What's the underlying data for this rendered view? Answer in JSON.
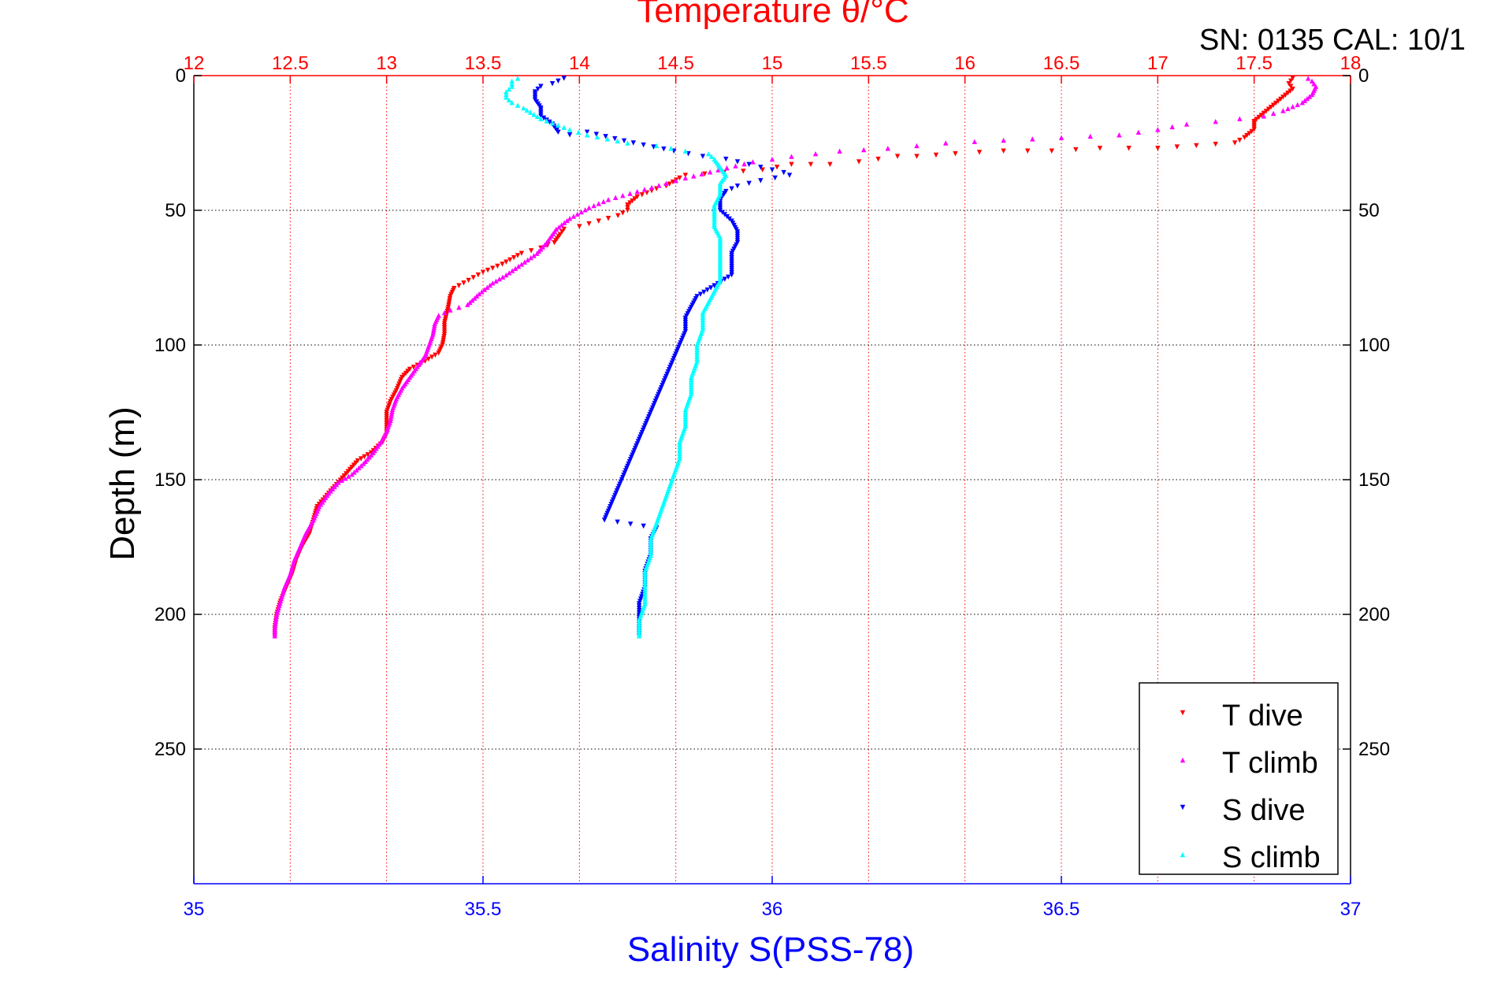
{
  "header": {
    "top_title": "Temperature θ/°C",
    "serial_label": "SN: 0135  CAL: 10/1"
  },
  "colors": {
    "temperature": "#ff0000",
    "salinity": "#0000ff",
    "t_dive": "#ff0000",
    "t_climb": "#ff00ff",
    "s_dive": "#0000ff",
    "s_climb": "#00ffff",
    "frame": "#000000",
    "grid_temp": "#ff0000",
    "grid_depth": "#000000"
  },
  "chart_data": {
    "type": "scatter",
    "title": "",
    "ylabel": "Depth (m)",
    "xlabel_bottom": "Salinity S(PSS-78)",
    "xlabel_top": "Temperature θ/°C",
    "y_reversed": true,
    "ylim": [
      0,
      300
    ],
    "xlim_bottom": [
      35,
      37
    ],
    "xlim_top": [
      12,
      18
    ],
    "y_ticks": [
      0,
      50,
      100,
      150,
      200,
      250
    ],
    "y_tick_labels": [
      "0",
      "50",
      "100",
      "150",
      "200",
      "250"
    ],
    "x_bottom_ticks": [
      35,
      35.5,
      36,
      36.5,
      37
    ],
    "x_bottom_tick_labels": [
      "35",
      "35.5",
      "36",
      "36.5",
      "37"
    ],
    "x_top_ticks": [
      12,
      12.5,
      13,
      13.5,
      14,
      14.5,
      15,
      15.5,
      16,
      16.5,
      17,
      17.5,
      18
    ],
    "x_top_tick_labels": [
      "12",
      "12.5",
      "13",
      "13.5",
      "14",
      "14.5",
      "15",
      "15.5",
      "16",
      "16.5",
      "17",
      "17.5",
      "18"
    ],
    "grid": "vertical dotted at temperature ticks, horizontal dotted at depth ticks",
    "legend": {
      "position": "bottom-right",
      "entries": [
        "T dive",
        "T climb",
        "S dive",
        "S climb"
      ]
    },
    "series": [
      {
        "name": "T dive",
        "axis": "temperature",
        "marker": "triangle-down",
        "color": "#ff0000",
        "points": [
          [
            17.7,
            1
          ],
          [
            17.68,
            3
          ],
          [
            17.7,
            5
          ],
          [
            17.65,
            8
          ],
          [
            17.6,
            11
          ],
          [
            17.55,
            14
          ],
          [
            17.5,
            17
          ],
          [
            17.5,
            20
          ],
          [
            17.45,
            23
          ],
          [
            17.4,
            25
          ],
          [
            17.2,
            26
          ],
          [
            17.0,
            27
          ],
          [
            16.85,
            27
          ],
          [
            16.7,
            27
          ],
          [
            16.45,
            28
          ],
          [
            16.2,
            28
          ],
          [
            15.95,
            29
          ],
          [
            15.75,
            30
          ],
          [
            15.65,
            30
          ],
          [
            15.55,
            31
          ],
          [
            15.45,
            32
          ],
          [
            15.3,
            33
          ],
          [
            15.1,
            33
          ],
          [
            14.95,
            35
          ],
          [
            14.75,
            36
          ],
          [
            14.55,
            37
          ],
          [
            14.52,
            38
          ],
          [
            14.45,
            41
          ],
          [
            14.4,
            42
          ],
          [
            14.3,
            45
          ],
          [
            14.25,
            48
          ],
          [
            14.25,
            50
          ],
          [
            14.2,
            52
          ],
          [
            14.1,
            54
          ],
          [
            14.0,
            56
          ],
          [
            13.92,
            57
          ],
          [
            13.9,
            59
          ],
          [
            13.87,
            62
          ],
          [
            13.8,
            64
          ],
          [
            13.7,
            66
          ],
          [
            13.6,
            70
          ],
          [
            13.5,
            73
          ],
          [
            13.45,
            75
          ],
          [
            13.4,
            77
          ],
          [
            13.35,
            79
          ],
          [
            13.33,
            82
          ],
          [
            13.32,
            86
          ],
          [
            13.31,
            89
          ],
          [
            13.3,
            92
          ],
          [
            13.3,
            96
          ],
          [
            13.29,
            100
          ],
          [
            13.27,
            103
          ],
          [
            13.2,
            106
          ],
          [
            13.12,
            109
          ],
          [
            13.08,
            112
          ],
          [
            13.05,
            117
          ],
          [
            13.02,
            121
          ],
          [
            13.0,
            125
          ],
          [
            13.0,
            129
          ],
          [
            13.0,
            133
          ],
          [
            12.98,
            136
          ],
          [
            12.92,
            140
          ],
          [
            12.85,
            143
          ],
          [
            12.8,
            147
          ],
          [
            12.75,
            151
          ],
          [
            12.7,
            155
          ],
          [
            12.64,
            160
          ],
          [
            12.62,
            165
          ],
          [
            12.6,
            170
          ],
          [
            12.56,
            175
          ],
          [
            12.53,
            180
          ],
          [
            12.51,
            185
          ],
          [
            12.48,
            190
          ],
          [
            12.45,
            195
          ],
          [
            12.43,
            200
          ],
          [
            12.42,
            205
          ],
          [
            12.42,
            208
          ]
        ]
      },
      {
        "name": "T climb",
        "axis": "temperature",
        "marker": "triangle-up",
        "color": "#ff00ff",
        "points": [
          [
            12.42,
            208
          ],
          [
            12.42,
            205
          ],
          [
            12.43,
            200
          ],
          [
            12.45,
            195
          ],
          [
            12.47,
            190
          ],
          [
            12.5,
            185
          ],
          [
            12.52,
            180
          ],
          [
            12.55,
            175
          ],
          [
            12.58,
            170
          ],
          [
            12.62,
            165
          ],
          [
            12.65,
            160
          ],
          [
            12.7,
            155
          ],
          [
            12.75,
            151
          ],
          [
            12.82,
            148
          ],
          [
            12.88,
            144
          ],
          [
            12.93,
            140
          ],
          [
            12.97,
            136
          ],
          [
            13.0,
            132
          ],
          [
            13.02,
            128
          ],
          [
            13.03,
            124
          ],
          [
            13.05,
            120
          ],
          [
            13.08,
            116
          ],
          [
            13.12,
            112
          ],
          [
            13.16,
            108
          ],
          [
            13.2,
            104
          ],
          [
            13.22,
            100
          ],
          [
            13.24,
            96
          ],
          [
            13.25,
            92
          ],
          [
            13.27,
            89
          ],
          [
            13.33,
            87
          ],
          [
            13.42,
            85
          ],
          [
            13.48,
            81
          ],
          [
            13.55,
            77
          ],
          [
            13.62,
            74
          ],
          [
            13.7,
            70
          ],
          [
            13.78,
            66
          ],
          [
            13.83,
            62
          ],
          [
            13.88,
            57
          ],
          [
            13.95,
            53
          ],
          [
            14.05,
            49
          ],
          [
            14.15,
            46
          ],
          [
            14.3,
            43
          ],
          [
            14.45,
            40
          ],
          [
            14.55,
            38
          ],
          [
            14.72,
            35
          ],
          [
            14.9,
            32
          ],
          [
            15.1,
            30
          ],
          [
            15.35,
            28
          ],
          [
            15.6,
            27
          ],
          [
            15.9,
            25
          ],
          [
            16.2,
            24
          ],
          [
            16.5,
            23
          ],
          [
            16.8,
            22
          ],
          [
            17.0,
            20
          ],
          [
            17.15,
            18
          ],
          [
            17.3,
            17
          ],
          [
            17.55,
            15
          ],
          [
            17.65,
            13
          ],
          [
            17.75,
            10
          ],
          [
            17.8,
            7
          ],
          [
            17.82,
            4
          ],
          [
            17.8,
            2
          ],
          [
            17.78,
            1
          ]
        ]
      },
      {
        "name": "S dive",
        "axis": "salinity",
        "marker": "triangle-down",
        "color": "#0000ff",
        "points": [
          [
            35.64,
            1
          ],
          [
            35.62,
            3
          ],
          [
            35.6,
            4
          ],
          [
            35.59,
            6
          ],
          [
            35.59,
            9
          ],
          [
            35.6,
            12
          ],
          [
            35.6,
            15
          ],
          [
            35.62,
            18
          ],
          [
            35.63,
            21
          ],
          [
            35.65,
            22
          ],
          [
            35.68,
            21
          ],
          [
            35.76,
            25
          ],
          [
            35.83,
            28
          ],
          [
            35.88,
            30
          ],
          [
            35.92,
            31
          ],
          [
            35.96,
            33
          ],
          [
            36.0,
            35
          ],
          [
            36.02,
            36
          ],
          [
            36.03,
            37
          ],
          [
            35.98,
            39
          ],
          [
            35.94,
            41
          ],
          [
            35.92,
            43
          ],
          [
            35.91,
            46
          ],
          [
            35.91,
            50
          ],
          [
            35.93,
            54
          ],
          [
            35.94,
            58
          ],
          [
            35.94,
            62
          ],
          [
            35.93,
            66
          ],
          [
            35.93,
            70
          ],
          [
            35.93,
            74
          ],
          [
            35.9,
            78
          ],
          [
            35.87,
            82
          ],
          [
            35.86,
            86
          ],
          [
            35.85,
            90
          ],
          [
            35.85,
            95
          ],
          [
            35.84,
            100
          ],
          [
            35.83,
            105
          ],
          [
            35.82,
            110
          ],
          [
            35.81,
            115
          ],
          [
            35.8,
            120
          ],
          [
            35.79,
            125
          ],
          [
            35.78,
            130
          ],
          [
            35.77,
            135
          ],
          [
            35.76,
            140
          ],
          [
            35.75,
            145
          ],
          [
            35.74,
            150
          ],
          [
            35.73,
            155
          ],
          [
            35.72,
            160
          ],
          [
            35.71,
            165
          ],
          [
            35.8,
            168
          ],
          [
            35.79,
            172
          ],
          [
            35.79,
            178
          ],
          [
            35.78,
            184
          ],
          [
            35.78,
            190
          ],
          [
            35.77,
            196
          ],
          [
            35.77,
            202
          ],
          [
            35.77,
            208
          ]
        ]
      },
      {
        "name": "S climb",
        "axis": "salinity",
        "marker": "triangle-up",
        "color": "#00ffff",
        "points": [
          [
            35.77,
            208
          ],
          [
            35.77,
            202
          ],
          [
            35.78,
            196
          ],
          [
            35.78,
            190
          ],
          [
            35.78,
            184
          ],
          [
            35.79,
            178
          ],
          [
            35.79,
            172
          ],
          [
            35.8,
            166
          ],
          [
            35.81,
            160
          ],
          [
            35.82,
            154
          ],
          [
            35.83,
            148
          ],
          [
            35.84,
            142
          ],
          [
            35.84,
            136
          ],
          [
            35.85,
            130
          ],
          [
            35.85,
            124
          ],
          [
            35.86,
            118
          ],
          [
            35.86,
            112
          ],
          [
            35.87,
            106
          ],
          [
            35.87,
            100
          ],
          [
            35.88,
            94
          ],
          [
            35.88,
            88
          ],
          [
            35.89,
            84
          ],
          [
            35.9,
            80
          ],
          [
            35.91,
            76
          ],
          [
            35.91,
            72
          ],
          [
            35.91,
            68
          ],
          [
            35.91,
            64
          ],
          [
            35.91,
            60
          ],
          [
            35.9,
            56
          ],
          [
            35.9,
            52
          ],
          [
            35.9,
            48
          ],
          [
            35.91,
            44
          ],
          [
            35.91,
            40
          ],
          [
            35.92,
            37
          ],
          [
            35.91,
            34
          ],
          [
            35.9,
            31
          ],
          [
            35.89,
            29
          ],
          [
            35.85,
            28
          ],
          [
            35.8,
            26
          ],
          [
            35.75,
            25
          ],
          [
            35.68,
            22
          ],
          [
            35.65,
            20
          ],
          [
            35.6,
            16
          ],
          [
            35.57,
            12
          ],
          [
            35.55,
            10
          ],
          [
            35.54,
            8
          ],
          [
            35.54,
            6
          ],
          [
            35.55,
            4
          ],
          [
            35.55,
            2
          ],
          [
            35.56,
            1
          ]
        ]
      }
    ]
  }
}
